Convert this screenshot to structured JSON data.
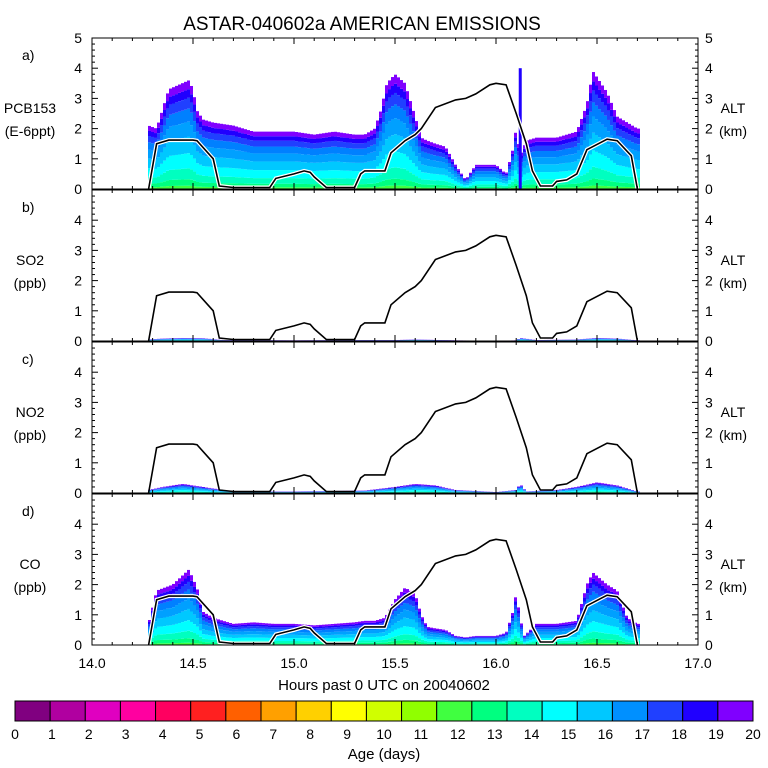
{
  "title": "ASTAR-040602a AMERICAN EMISSIONS",
  "xlabel": "Hours past 0 UTC on 20040602",
  "x_ticks": [
    "14.0",
    "14.5",
    "15.0",
    "15.5",
    "16.0",
    "16.5",
    "17.0"
  ],
  "x_range": [
    14.0,
    17.0
  ],
  "panels": [
    {
      "letter": "a)",
      "ylabel_1": "PCB153",
      "ylabel_2": "(E-6ppt)",
      "y_ticks": [
        "0",
        "1",
        "2",
        "3",
        "4",
        "5"
      ],
      "right_label_1": "ALT",
      "right_label_2": "(km)"
    },
    {
      "letter": "b)",
      "ylabel_1": "SO2",
      "ylabel_2": "(ppb)",
      "y_ticks": [
        "0",
        "1",
        "2",
        "3",
        "4",
        ""
      ],
      "right_label_1": "ALT",
      "right_label_2": "(km)"
    },
    {
      "letter": "c)",
      "ylabel_1": "NO2",
      "ylabel_2": "(ppb)",
      "y_ticks": [
        "0",
        "1",
        "2",
        "3",
        "4",
        ""
      ],
      "right_label_1": "ALT",
      "right_label_2": "(km)"
    },
    {
      "letter": "d)",
      "ylabel_1": "CO",
      "ylabel_2": "(ppb)",
      "y_ticks": [
        "0",
        "1",
        "2",
        "3",
        "4",
        ""
      ],
      "right_label_1": "ALT",
      "right_label_2": "(km)"
    }
  ],
  "colorbar": {
    "label": "Age (days)",
    "tick_labels": [
      "0",
      "1",
      "2",
      "3",
      "4",
      "5",
      "6",
      "7",
      "8",
      "9",
      "10",
      "11",
      "12",
      "13",
      "14",
      "15",
      "16",
      "17",
      "18",
      "19",
      "20"
    ],
    "colors": [
      "#800080",
      "#b000a0",
      "#e000c0",
      "#ff00a0",
      "#ff0060",
      "#ff2020",
      "#ff6000",
      "#ffa000",
      "#ffd000",
      "#ffff00",
      "#d0ff00",
      "#90ff00",
      "#40ff40",
      "#00ff80",
      "#00ffc0",
      "#00ffff",
      "#00c8ff",
      "#0090ff",
      "#2040ff",
      "#2000ff",
      "#8000ff"
    ]
  },
  "chart_data": {
    "type": "area",
    "x_label": "Hours past 0 UTC on 20040602",
    "x_range": [
      14.0,
      17.0
    ],
    "y_range": [
      0,
      5
    ],
    "altitude_km": {
      "x": [
        14.28,
        14.32,
        14.38,
        14.5,
        14.52,
        14.6,
        14.63,
        14.7,
        14.88,
        14.91,
        15.0,
        15.05,
        15.08,
        15.1,
        15.16,
        15.2,
        15.3,
        15.33,
        15.35,
        15.45,
        15.48,
        15.55,
        15.6,
        15.63,
        15.7,
        15.8,
        15.85,
        15.9,
        15.97,
        16.0,
        16.05,
        16.1,
        16.15,
        16.18,
        16.22,
        16.28,
        16.3,
        16.35,
        16.4,
        16.45,
        16.55,
        16.6,
        16.67,
        16.7
      ],
      "values": [
        0.0,
        1.5,
        1.62,
        1.62,
        1.6,
        1.0,
        0.1,
        0.05,
        0.05,
        0.35,
        0.5,
        0.6,
        0.55,
        0.4,
        0.05,
        0.05,
        0.05,
        0.5,
        0.6,
        0.6,
        1.2,
        1.6,
        1.8,
        2.0,
        2.7,
        2.95,
        3.0,
        3.15,
        3.45,
        3.5,
        3.45,
        2.5,
        1.5,
        0.6,
        0.1,
        0.1,
        0.25,
        0.3,
        0.5,
        1.3,
        1.65,
        1.6,
        1.1,
        0.0
      ]
    },
    "species": [
      {
        "name": "PCB153",
        "total": {
          "x": [
            14.28,
            14.32,
            14.38,
            14.48,
            14.5,
            14.52,
            14.55,
            14.6,
            14.7,
            14.8,
            14.9,
            15.0,
            15.1,
            15.2,
            15.3,
            15.35,
            15.4,
            15.43,
            15.46,
            15.5,
            15.55,
            15.6,
            15.63,
            15.66,
            15.7,
            15.75,
            15.8,
            15.85,
            15.9,
            16.0,
            16.05,
            16.08,
            16.1,
            16.12,
            16.15,
            16.2,
            16.3,
            16.4,
            16.45,
            16.48,
            16.55,
            16.6,
            16.65,
            16.7
          ],
          "values": [
            2.1,
            2.0,
            3.3,
            3.6,
            3.3,
            2.6,
            2.3,
            2.2,
            2.1,
            1.9,
            1.9,
            1.9,
            1.8,
            1.9,
            1.8,
            1.8,
            2.0,
            2.6,
            3.5,
            3.8,
            3.5,
            2.4,
            1.7,
            1.6,
            1.5,
            1.4,
            0.8,
            0.3,
            0.8,
            0.8,
            0.5,
            1.2,
            2.0,
            1.1,
            1.6,
            1.7,
            1.7,
            1.9,
            2.8,
            3.9,
            3.2,
            2.4,
            2.2,
            2.0
          ]
        },
        "spike": {
          "x": 16.12,
          "value": 4.0
        }
      },
      {
        "name": "SO2",
        "total": {
          "x": [
            14.28,
            14.35,
            14.45,
            14.55,
            14.65,
            15.0,
            15.35,
            15.5,
            15.6,
            15.8,
            16.0,
            16.1,
            16.12,
            16.2,
            16.4,
            16.5,
            16.6,
            16.7
          ],
          "values": [
            0.05,
            0.08,
            0.1,
            0.09,
            0.03,
            0.02,
            0.03,
            0.03,
            0.05,
            0.02,
            0.01,
            0.02,
            0.1,
            0.03,
            0.05,
            0.1,
            0.08,
            0.02
          ]
        }
      },
      {
        "name": "NO2",
        "total": {
          "x": [
            14.28,
            14.35,
            14.45,
            14.55,
            14.6,
            14.7,
            15.0,
            15.35,
            15.5,
            15.6,
            15.7,
            15.8,
            16.0,
            16.1,
            16.12,
            16.15,
            16.3,
            16.4,
            16.5,
            16.6,
            16.7
          ],
          "values": [
            0.1,
            0.2,
            0.3,
            0.2,
            0.15,
            0.05,
            0.05,
            0.08,
            0.2,
            0.3,
            0.25,
            0.1,
            0.03,
            0.1,
            0.3,
            0.05,
            0.1,
            0.2,
            0.35,
            0.25,
            0.05
          ]
        }
      },
      {
        "name": "CO",
        "total": {
          "x": [
            14.28,
            14.32,
            14.4,
            14.48,
            14.52,
            14.55,
            14.6,
            14.7,
            14.8,
            14.9,
            15.0,
            15.1,
            15.2,
            15.3,
            15.35,
            15.4,
            15.45,
            15.5,
            15.55,
            15.6,
            15.63,
            15.66,
            15.7,
            15.75,
            15.8,
            15.85,
            15.9,
            16.0,
            16.05,
            16.08,
            16.1,
            16.12,
            16.14,
            16.2,
            16.3,
            16.4,
            16.45,
            16.48,
            16.55,
            16.6,
            16.65,
            16.7
          ],
          "values": [
            0.7,
            1.8,
            2.0,
            2.5,
            1.9,
            1.1,
            0.9,
            0.7,
            0.75,
            0.7,
            0.7,
            0.65,
            0.7,
            0.75,
            0.8,
            0.8,
            0.9,
            1.5,
            1.9,
            1.7,
            1.0,
            0.6,
            0.55,
            0.5,
            0.3,
            0.25,
            0.3,
            0.3,
            0.4,
            1.0,
            1.7,
            0.9,
            0.3,
            0.7,
            0.7,
            0.8,
            2.0,
            2.4,
            2.0,
            1.8,
            0.9,
            0.7
          ]
        }
      }
    ]
  }
}
